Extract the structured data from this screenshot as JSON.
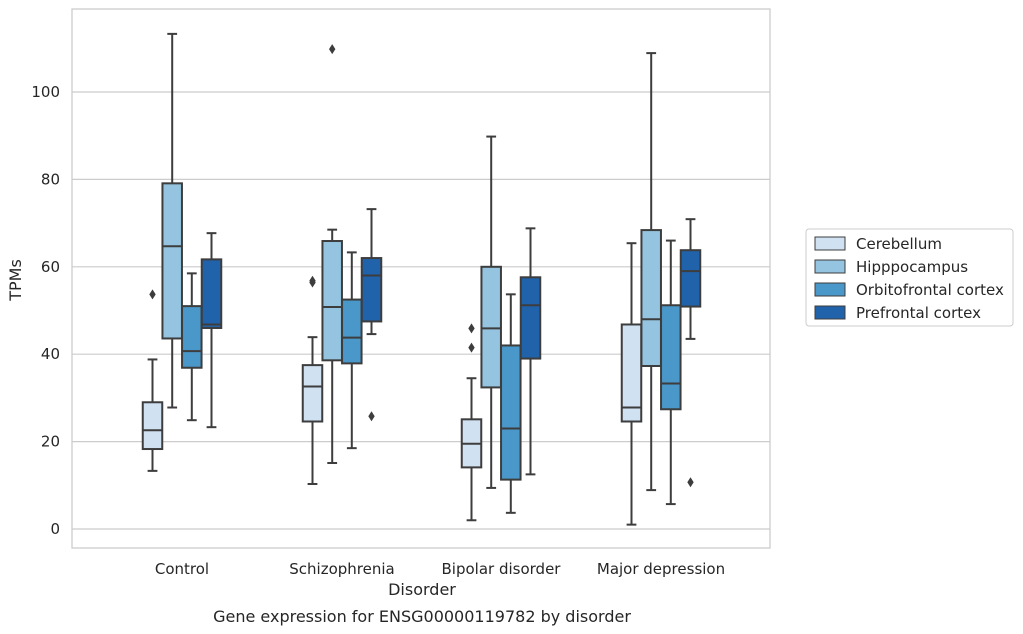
{
  "chart_data": {
    "type": "box",
    "caption": "Gene expression for ENSG00000119782 by disorder",
    "xlabel": "Disorder",
    "ylabel": "TPMs",
    "ylim": [
      -4,
      119
    ],
    "yticks": [
      0,
      20,
      40,
      60,
      80,
      100
    ],
    "grid": "horizontal",
    "legend_position": "center-right",
    "categories": [
      "Control",
      "Schizophrenia",
      "Bipolar disorder",
      "Major depression"
    ],
    "series": [
      {
        "name": "Cerebellum",
        "color": "#d0e1f2",
        "boxes": [
          {
            "min": 13.3,
            "q1": 18.3,
            "median": 22.6,
            "q3": 29.0,
            "max": 38.8,
            "outliers": [
              53.7
            ]
          },
          {
            "min": 10.3,
            "q1": 24.6,
            "median": 32.6,
            "q3": 37.5,
            "max": 43.9,
            "outliers": [
              56.8,
              56.4
            ]
          },
          {
            "min": 2.0,
            "q1": 14.1,
            "median": 19.5,
            "q3": 25.1,
            "max": 34.5,
            "outliers": [
              41.5,
              45.9
            ]
          },
          {
            "min": 1.0,
            "q1": 24.6,
            "median": 27.8,
            "q3": 46.8,
            "max": 65.4,
            "outliers": []
          }
        ]
      },
      {
        "name": "Hipppocampus",
        "color": "#94c4df",
        "boxes": [
          {
            "min": 27.8,
            "q1": 43.6,
            "median": 64.7,
            "q3": 79.1,
            "max": 113.3,
            "outliers": []
          },
          {
            "min": 15.1,
            "q1": 38.6,
            "median": 50.8,
            "q3": 65.9,
            "max": 68.5,
            "outliers": [
              109.8
            ]
          },
          {
            "min": 9.4,
            "q1": 32.4,
            "median": 45.9,
            "q3": 60.0,
            "max": 89.8,
            "outliers": []
          },
          {
            "min": 8.9,
            "q1": 37.3,
            "median": 48.0,
            "q3": 68.4,
            "max": 108.9,
            "outliers": []
          }
        ]
      },
      {
        "name": "Orbitofrontal cortex",
        "color": "#4a98c9",
        "boxes": [
          {
            "min": 24.9,
            "q1": 36.9,
            "median": 40.7,
            "q3": 51.0,
            "max": 58.5,
            "outliers": []
          },
          {
            "min": 18.5,
            "q1": 37.9,
            "median": 43.8,
            "q3": 52.5,
            "max": 63.3,
            "outliers": []
          },
          {
            "min": 3.7,
            "q1": 11.3,
            "median": 23.0,
            "q3": 42.0,
            "max": 53.7,
            "outliers": []
          },
          {
            "min": 5.7,
            "q1": 27.4,
            "median": 33.3,
            "q3": 51.2,
            "max": 66.0,
            "outliers": []
          }
        ]
      },
      {
        "name": "Prefrontal cortex",
        "color": "#2163aa",
        "boxes": [
          {
            "min": 23.3,
            "q1": 46.0,
            "median": 46.8,
            "q3": 61.7,
            "max": 67.7,
            "outliers": []
          },
          {
            "min": 44.6,
            "q1": 47.5,
            "median": 58.0,
            "q3": 62.0,
            "max": 73.2,
            "outliers": [
              25.8
            ]
          },
          {
            "min": 12.5,
            "q1": 39.0,
            "median": 51.2,
            "q3": 57.6,
            "max": 68.8,
            "outliers": []
          },
          {
            "min": 43.5,
            "q1": 50.9,
            "median": 59.0,
            "q3": 63.8,
            "max": 70.9,
            "outliers": [
              10.7
            ]
          }
        ]
      }
    ]
  }
}
